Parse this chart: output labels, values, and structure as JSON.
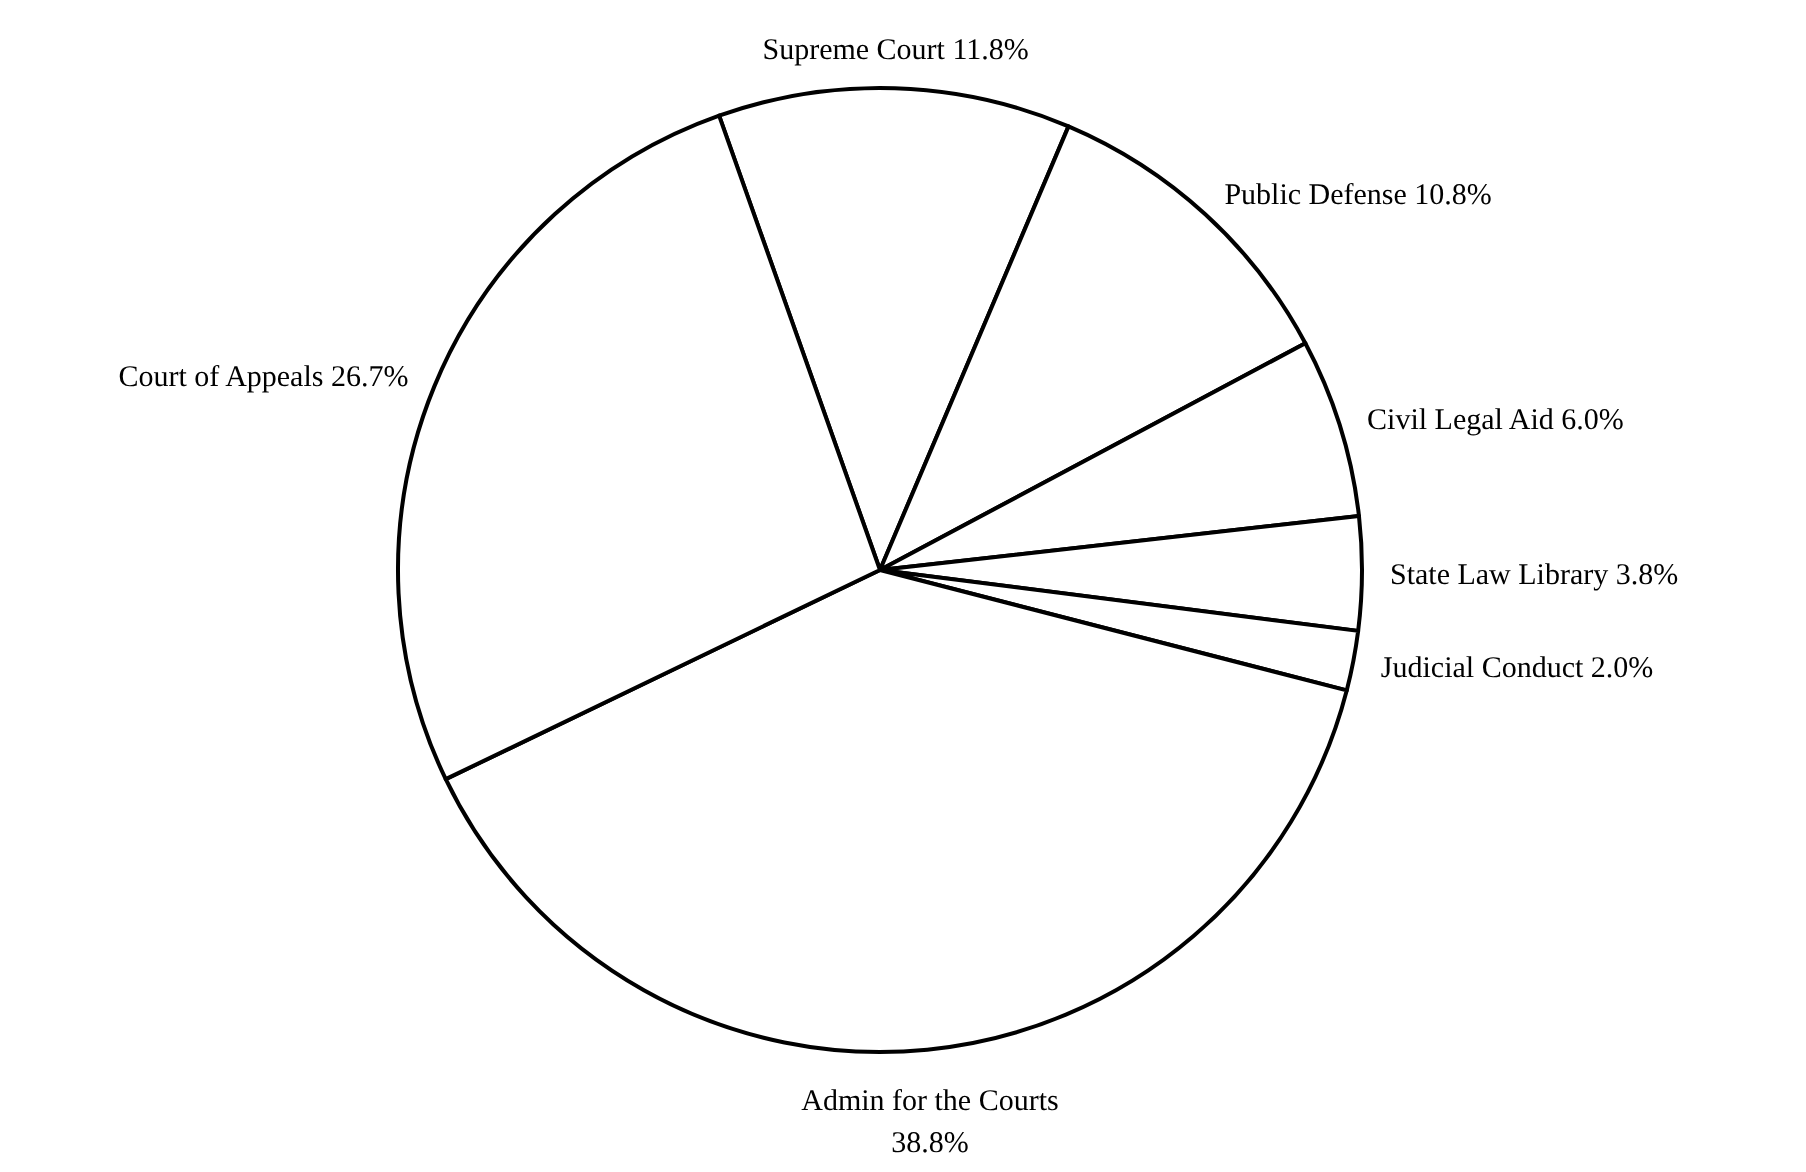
{
  "chart_data": {
    "type": "pie",
    "categories": [
      "Supreme Court",
      "Public Defense",
      "Civil Legal Aid",
      "State Law Library",
      "Judicial Conduct",
      "Admin for the Courts",
      "Court of Appeals"
    ],
    "values": [
      11.8,
      10.8,
      6.0,
      3.8,
      2.0,
      38.8,
      26.7
    ],
    "colors": [
      "#ffffff",
      "#ffffff",
      "#ffffff",
      "#ffffff",
      "#ffffff",
      "#ffffff",
      "#ffffff"
    ],
    "value_labels": [
      "11.8%",
      "10.8%",
      "6.0%",
      "3.8%",
      "2.0%",
      "38.8%",
      "26.7%"
    ]
  }
}
